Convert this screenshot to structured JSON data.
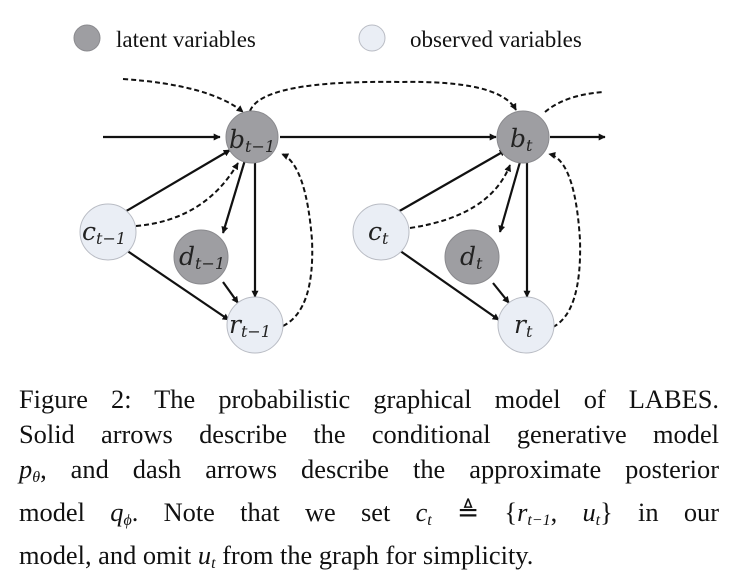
{
  "legend": {
    "latent_label": "latent variables",
    "observed_label": "observed variables",
    "latent_color": "#9e9ea2",
    "observed_color": "#eaeef5"
  },
  "nodes": {
    "b_prev": {
      "base": "b",
      "sub": "t−1"
    },
    "c_prev": {
      "base": "c",
      "sub": "t−1"
    },
    "d_prev": {
      "base": "d",
      "sub": "t−1"
    },
    "r_prev": {
      "base": "r",
      "sub": "t−1"
    },
    "b_t": {
      "base": "b",
      "sub": "t"
    },
    "c_t": {
      "base": "c",
      "sub": "t"
    },
    "d_t": {
      "base": "d",
      "sub": "t"
    },
    "r_t": {
      "base": "r",
      "sub": "t"
    }
  },
  "caption": {
    "line1": "Figure 2: The probabilistic graphical model of LABES.",
    "line2": "Solid arrows describe the conditional generative model",
    "line3_pre": "p",
    "line3_sub": "θ",
    "line3_post": ", and dash arrows describe the approximate posterior",
    "line4_a": "model ",
    "line4_q": "q",
    "line4_q_sub": "ϕ",
    "line4_b": ".  Note that we set ",
    "line4_c": "c",
    "line4_c_sub": "t",
    "line4_d": " ≜ {",
    "line4_r": "r",
    "line4_r_sub": "t−1",
    "line4_e": ", ",
    "line4_u": "u",
    "line4_u_sub": "t",
    "line4_f": "} in our",
    "line5_a": "model, and omit ",
    "line5_u": "u",
    "line5_u_sub": "t",
    "line5_b": " from the graph for simplicity."
  }
}
